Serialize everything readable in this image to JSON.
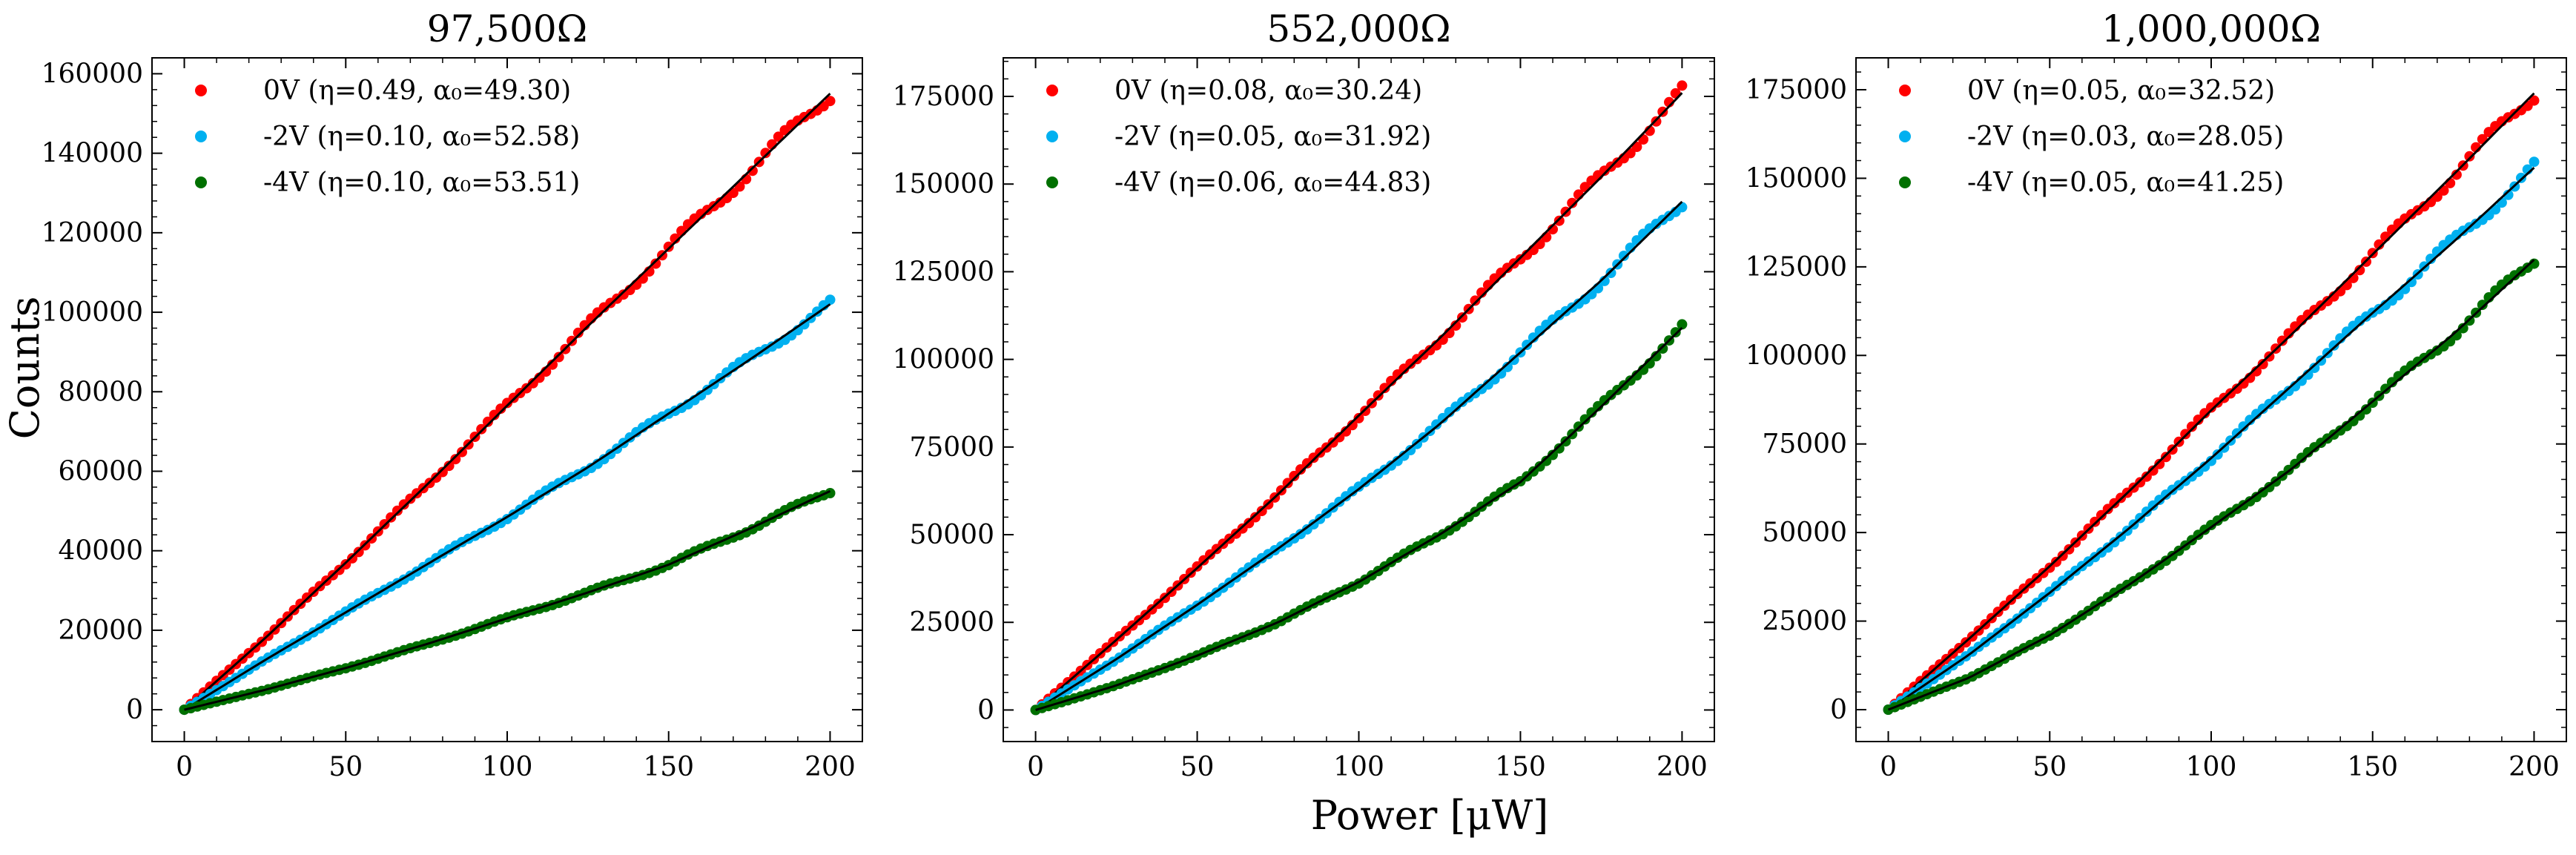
{
  "figure": {
    "xlabel": "Power [μW]",
    "ylabel": "Counts"
  },
  "chart_data": [
    {
      "type": "scatter",
      "title": "97,500Ω",
      "xlabel": "Power [μW]",
      "ylabel": "Counts",
      "xlim": [
        -10,
        210
      ],
      "ylim": [
        -8000,
        164000
      ],
      "xticks": [
        0,
        50,
        100,
        150,
        200
      ],
      "yticks": [
        0,
        20000,
        40000,
        60000,
        80000,
        100000,
        120000,
        140000,
        160000
      ],
      "grid": false,
      "legend_position": "top-left",
      "series": [
        {
          "name": "0V (η=0.49, α₀=49.30)",
          "color": "#ff0000",
          "x": [
            0,
            25,
            50,
            75,
            100,
            125,
            150,
            175,
            200
          ],
          "y": [
            0,
            18000,
            37000,
            56500,
            76500,
            96500,
            116000,
            135500,
            155000
          ]
        },
        {
          "name": "-2V (η=0.10, α₀=52.58)",
          "color": "#00b0f0",
          "x": [
            0,
            25,
            50,
            75,
            100,
            125,
            150,
            175,
            200
          ],
          "y": [
            0,
            12500,
            24500,
            36500,
            48500,
            61000,
            74500,
            88000,
            102000
          ]
        },
        {
          "name": "-4V (η=0.10, α₀=53.51)",
          "color": "#007000",
          "x": [
            0,
            25,
            50,
            75,
            100,
            125,
            150,
            175,
            200
          ],
          "y": [
            0,
            5000,
            10500,
            16500,
            23000,
            29500,
            36500,
            45500,
            55000
          ]
        }
      ]
    },
    {
      "type": "scatter",
      "title": "552,000Ω",
      "xlabel": "Power [μW]",
      "ylabel": "",
      "xlim": [
        -10,
        210
      ],
      "ylim": [
        -9000,
        186000
      ],
      "xticks": [
        0,
        50,
        100,
        150,
        200
      ],
      "yticks": [
        0,
        25000,
        50000,
        75000,
        100000,
        125000,
        150000,
        175000
      ],
      "grid": false,
      "legend_position": "top-left",
      "series": [
        {
          "name": "0V (η=0.08, α₀=30.24)",
          "color": "#ff0000",
          "x": [
            0,
            25,
            50,
            75,
            100,
            125,
            150,
            175,
            200
          ],
          "y": [
            0,
            20000,
            40500,
            61500,
            84000,
            106000,
            129000,
            152000,
            176000
          ]
        },
        {
          "name": "-2V (η=0.05, α₀=31.92)",
          "color": "#00b0f0",
          "x": [
            0,
            25,
            50,
            75,
            100,
            125,
            150,
            175,
            200
          ],
          "y": [
            0,
            14500,
            30000,
            46000,
            63000,
            81500,
            102000,
            122500,
            145000
          ]
        },
        {
          "name": "-4V (η=0.06, α₀=44.83)",
          "color": "#007000",
          "x": [
            0,
            25,
            50,
            75,
            100,
            125,
            150,
            175,
            200
          ],
          "y": [
            0,
            7000,
            15500,
            25000,
            36500,
            50000,
            65000,
            86500,
            109000
          ]
        }
      ]
    },
    {
      "type": "scatter",
      "title": "1,000,000Ω",
      "xlabel": "Power [μW]",
      "ylabel": "",
      "xlim": [
        -10,
        210
      ],
      "ylim": [
        -9000,
        184000
      ],
      "xticks": [
        0,
        50,
        100,
        150,
        200
      ],
      "yticks": [
        0,
        25000,
        50000,
        75000,
        100000,
        125000,
        150000,
        175000
      ],
      "grid": false,
      "legend_position": "top-left",
      "series": [
        {
          "name": "0V (η=0.05, α₀=32.52)",
          "color": "#ff0000",
          "x": [
            0,
            25,
            50,
            75,
            100,
            125,
            150,
            175,
            200
          ],
          "y": [
            0,
            20000,
            40500,
            62000,
            84500,
            106000,
            128500,
            151000,
            174000
          ]
        },
        {
          "name": "-2V (η=0.03, α₀=28.05)",
          "color": "#00b0f0",
          "x": [
            0,
            25,
            50,
            75,
            100,
            125,
            150,
            175,
            200
          ],
          "y": [
            0,
            15500,
            33000,
            51500,
            71000,
            91500,
            112000,
            132000,
            153000
          ]
        },
        {
          "name": "-4V (η=0.05, α₀=41.25)",
          "color": "#007000",
          "x": [
            0,
            25,
            50,
            75,
            100,
            125,
            150,
            175,
            200
          ],
          "y": [
            0,
            9000,
            21000,
            35500,
            51500,
            68000,
            87000,
            106000,
            127000
          ]
        }
      ]
    }
  ]
}
